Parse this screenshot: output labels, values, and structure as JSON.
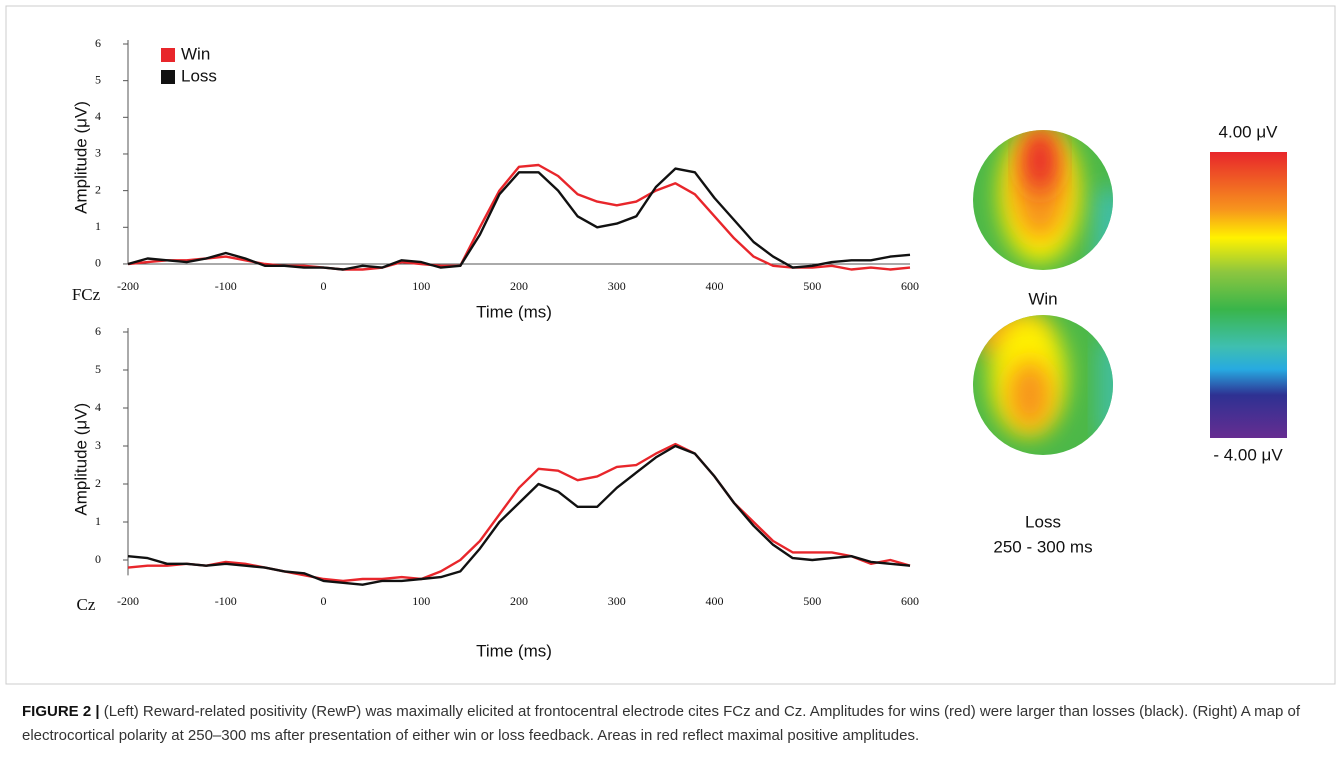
{
  "chart_data": [
    {
      "type": "line",
      "electrode": "FCz",
      "ylabel": "Amplitude (μV)",
      "xlabel": "Time (ms)",
      "x": [
        -200,
        -180,
        -160,
        -140,
        -120,
        -100,
        -80,
        -60,
        -40,
        -20,
        0,
        20,
        40,
        60,
        80,
        100,
        120,
        140,
        160,
        180,
        200,
        220,
        240,
        260,
        280,
        300,
        320,
        340,
        360,
        380,
        400,
        420,
        440,
        460,
        480,
        500,
        520,
        540,
        560,
        580,
        600
      ],
      "series": [
        {
          "name": "Win",
          "color": "#e8262b",
          "values": [
            0,
            0.05,
            0.1,
            0.1,
            0.15,
            0.2,
            0.1,
            0,
            -0.05,
            -0.05,
            -0.1,
            -0.15,
            -0.15,
            -0.1,
            0.05,
            0,
            -0.05,
            -0.05,
            1.0,
            2.0,
            2.65,
            2.7,
            2.4,
            1.9,
            1.7,
            1.6,
            1.7,
            2.0,
            2.2,
            1.9,
            1.3,
            0.7,
            0.2,
            -0.05,
            -0.1,
            -0.1,
            -0.05,
            -0.15,
            -0.1,
            -0.15,
            -0.1
          ]
        },
        {
          "name": "Loss",
          "color": "#111111",
          "values": [
            0,
            0.15,
            0.1,
            0.05,
            0.15,
            0.3,
            0.15,
            -0.05,
            -0.05,
            -0.1,
            -0.1,
            -0.15,
            -0.05,
            -0.1,
            0.1,
            0.05,
            -0.1,
            -0.05,
            0.8,
            1.9,
            2.5,
            2.5,
            2.0,
            1.3,
            1.0,
            1.1,
            1.3,
            2.1,
            2.6,
            2.5,
            1.8,
            1.2,
            0.6,
            0.2,
            -0.1,
            -0.05,
            0.05,
            0.1,
            0.1,
            0.2,
            0.25
          ]
        }
      ],
      "xlim": [
        -200,
        600
      ],
      "xticks": [
        -200,
        -100,
        0,
        100,
        200,
        300,
        400,
        500,
        600
      ],
      "ylim": [
        -0.3,
        6
      ],
      "yticks": [
        0,
        1,
        2,
        3,
        4,
        5,
        6
      ],
      "zero_line": true,
      "legend": "upper left"
    },
    {
      "type": "line",
      "electrode": "Cz",
      "xlabel": "Time (ms)",
      "x": [
        -200,
        -180,
        -160,
        -140,
        -120,
        -100,
        -80,
        -60,
        -40,
        -20,
        0,
        20,
        40,
        60,
        80,
        100,
        120,
        140,
        160,
        180,
        200,
        220,
        240,
        260,
        280,
        300,
        320,
        340,
        360,
        380,
        400,
        420,
        440,
        460,
        480,
        500,
        520,
        540,
        560,
        580,
        600
      ],
      "series": [
        {
          "color": "#e8262b",
          "values": [
            -0.2,
            -0.15,
            -0.15,
            -0.1,
            -0.15,
            -0.05,
            -0.1,
            -0.2,
            -0.3,
            -0.4,
            -0.5,
            -0.55,
            -0.5,
            -0.5,
            -0.45,
            -0.5,
            -0.3,
            0,
            0.5,
            1.2,
            1.9,
            2.4,
            2.35,
            2.1,
            2.2,
            2.45,
            2.5,
            2.8,
            3.05,
            2.8,
            2.2,
            1.5,
            1.0,
            0.5,
            0.2,
            0.2,
            0.2,
            0.1,
            -0.1,
            0,
            -0.15
          ]
        },
        {
          "color": "#111111",
          "values": [
            0.1,
            0.05,
            -0.1,
            -0.1,
            -0.15,
            -0.1,
            -0.15,
            -0.2,
            -0.3,
            -0.35,
            -0.55,
            -0.6,
            -0.65,
            -0.55,
            -0.55,
            -0.5,
            -0.45,
            -0.3,
            0.3,
            1.0,
            1.5,
            2.0,
            1.8,
            1.4,
            1.4,
            1.9,
            2.3,
            2.7,
            3.0,
            2.8,
            2.2,
            1.5,
            0.9,
            0.4,
            0.05,
            0,
            0.05,
            0.1,
            -0.05,
            -0.1,
            -0.15
          ]
        }
      ],
      "xlim": [
        -200,
        600
      ],
      "xticks": [
        -200,
        -100,
        0,
        100,
        200,
        300,
        400,
        500,
        600
      ],
      "ylim": [
        -0.8,
        6
      ],
      "yticks": [
        0,
        1,
        2,
        3,
        4,
        5,
        6
      ],
      "ylabel": "Amplitude (μV)",
      "zero_line": false
    }
  ],
  "topomaps": {
    "win_label": "Win",
    "loss_label": "Loss",
    "window": "250 - 300 ms",
    "scale_max": "4.00 μV",
    "scale_min": "- 4.00 μV"
  },
  "caption": {
    "label": "FIGURE 2 |",
    "text": "(Left) Reward-related positivity (RewP) was maximally elicited at frontocentral electrode cites FCz and Cz. Amplitudes for wins (red) were larger than losses (black). (Right) A map of electrocortical polarity at 250–300 ms after presentation of either win or loss feedback. Areas in red reflect maximal positive amplitudes."
  }
}
